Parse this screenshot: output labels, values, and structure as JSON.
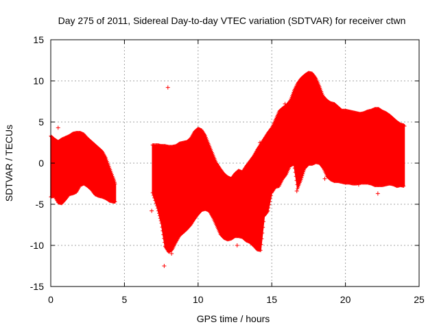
{
  "chart_data": {
    "type": "scatter",
    "title": "Day 275 of 2011, Sidereal Day-to-day VTEC variation (SDTVAR) for receiver ctwn",
    "xlabel": "GPS time / hours",
    "ylabel": "SDTVAR / TECUs",
    "xlim": [
      0,
      25
    ],
    "ylim": [
      -15,
      15
    ],
    "xticks": [
      0,
      5,
      10,
      15,
      20,
      25
    ],
    "yticks": [
      -15,
      -10,
      -5,
      0,
      5,
      10,
      15
    ],
    "grid": true,
    "marker": "+",
    "color": "#ff0000",
    "series": [
      {
        "name": "ctwn",
        "segments": [
          {
            "x": [
              0.0,
              0.25,
              0.5,
              0.75,
              1.0,
              1.25,
              1.5,
              1.75,
              2.0,
              2.25,
              2.5,
              2.75,
              3.0,
              3.25,
              3.5,
              3.75,
              4.0,
              4.25,
              4.4
            ],
            "upper": [
              3.3,
              2.9,
              2.6,
              2.9,
              3.1,
              3.3,
              3.6,
              3.7,
              3.7,
              3.5,
              3.0,
              2.6,
              2.2,
              1.8,
              1.4,
              0.6,
              -0.6,
              -1.8,
              -2.7
            ],
            "lower": [
              -4.1,
              -4.0,
              -4.8,
              -4.9,
              -4.4,
              -3.8,
              -3.7,
              -3.5,
              -2.7,
              -2.5,
              -2.8,
              -3.2,
              -3.8,
              -4.0,
              -4.1,
              -4.3,
              -4.6,
              -4.7,
              -4.7
            ]
          },
          {
            "x": [
              6.9,
              7.25,
              7.5,
              7.75,
              8.0,
              8.25,
              8.5,
              8.75,
              9.0,
              9.25,
              9.5,
              9.75,
              10.0,
              10.25,
              10.5,
              10.75,
              11.0,
              11.25,
              11.5,
              11.75,
              12.0,
              12.25,
              12.5,
              12.75,
              13.0,
              13.25,
              13.5,
              13.75,
              14.0,
              14.25,
              14.5,
              14.75,
              15.0,
              15.25,
              15.5,
              15.75,
              16.0,
              16.25,
              16.5,
              16.75,
              17.0,
              17.25,
              17.5,
              17.75,
              18.0,
              18.25,
              18.5,
              18.75,
              19.0,
              19.25,
              19.5,
              19.75,
              20.0,
              20.25,
              20.5,
              20.75,
              21.0,
              21.25,
              21.5,
              21.75,
              22.0,
              22.25,
              22.5,
              22.75,
              23.0,
              23.25,
              23.5,
              23.75,
              24.0
            ],
            "upper": [
              2.2,
              2.2,
              2.1,
              2.1,
              2.0,
              2.0,
              2.1,
              2.4,
              2.5,
              2.6,
              3.0,
              3.8,
              4.2,
              4.0,
              3.3,
              2.2,
              1.1,
              0.0,
              -0.7,
              -1.3,
              -1.7,
              -1.9,
              -1.3,
              -0.9,
              -1.1,
              -0.4,
              0.2,
              0.8,
              1.6,
              2.3,
              3.0,
              3.7,
              4.3,
              5.3,
              6.3,
              6.7,
              7.0,
              7.6,
              8.8,
              9.7,
              10.3,
              10.7,
              11.0,
              10.9,
              10.3,
              9.3,
              8.1,
              7.6,
              7.3,
              7.2,
              6.8,
              6.4,
              6.4,
              6.3,
              6.2,
              6.1,
              6.0,
              6.1,
              6.3,
              6.4,
              6.6,
              6.6,
              6.3,
              6.1,
              5.8,
              5.4,
              5.0,
              4.7,
              4.6
            ],
            "lower": [
              -3.6,
              -5.5,
              -7.3,
              -10.1,
              -10.8,
              -10.5,
              -9.6,
              -8.8,
              -8.4,
              -8.0,
              -7.5,
              -6.8,
              -6.2,
              -5.7,
              -5.6,
              -5.8,
              -6.6,
              -7.6,
              -8.6,
              -9.1,
              -9.3,
              -9.2,
              -8.9,
              -8.9,
              -9.0,
              -9.4,
              -9.6,
              -10.0,
              -10.5,
              -10.6,
              -6.4,
              -5.8,
              -3.6,
              -2.9,
              -2.8,
              -1.9,
              -1.3,
              -0.3,
              -0.1,
              -3.1,
              -2.0,
              -0.6,
              -0.1,
              -0.1,
              0.1,
              0.0,
              -0.6,
              -1.6,
              -2.0,
              -2.2,
              -2.2,
              -2.3,
              -2.4,
              -2.4,
              -2.5,
              -2.5,
              -2.4,
              -2.4,
              -2.4,
              -2.5,
              -2.7,
              -2.7,
              -2.7,
              -2.6,
              -2.5,
              -2.6,
              -2.8,
              -2.7,
              -2.8
            ]
          }
        ],
        "outliers": [
          {
            "x": 0.5,
            "y": 4.3
          },
          {
            "x": 1.9,
            "y": -2.4
          },
          {
            "x": 6.85,
            "y": -5.8
          },
          {
            "x": 7.7,
            "y": -12.5
          },
          {
            "x": 7.95,
            "y": 9.2
          },
          {
            "x": 8.2,
            "y": -11.0
          },
          {
            "x": 9.05,
            "y": -8.3
          },
          {
            "x": 12.65,
            "y": -10.0
          },
          {
            "x": 14.2,
            "y": 2.5
          },
          {
            "x": 15.9,
            "y": 7.2
          },
          {
            "x": 16.7,
            "y": -3.4
          },
          {
            "x": 18.6,
            "y": -1.9
          },
          {
            "x": 20.9,
            "y": -2.6
          },
          {
            "x": 22.2,
            "y": -3.7
          },
          {
            "x": 22.3,
            "y": 6.4
          },
          {
            "x": 24.0,
            "y": 4.5
          }
        ]
      }
    ]
  }
}
